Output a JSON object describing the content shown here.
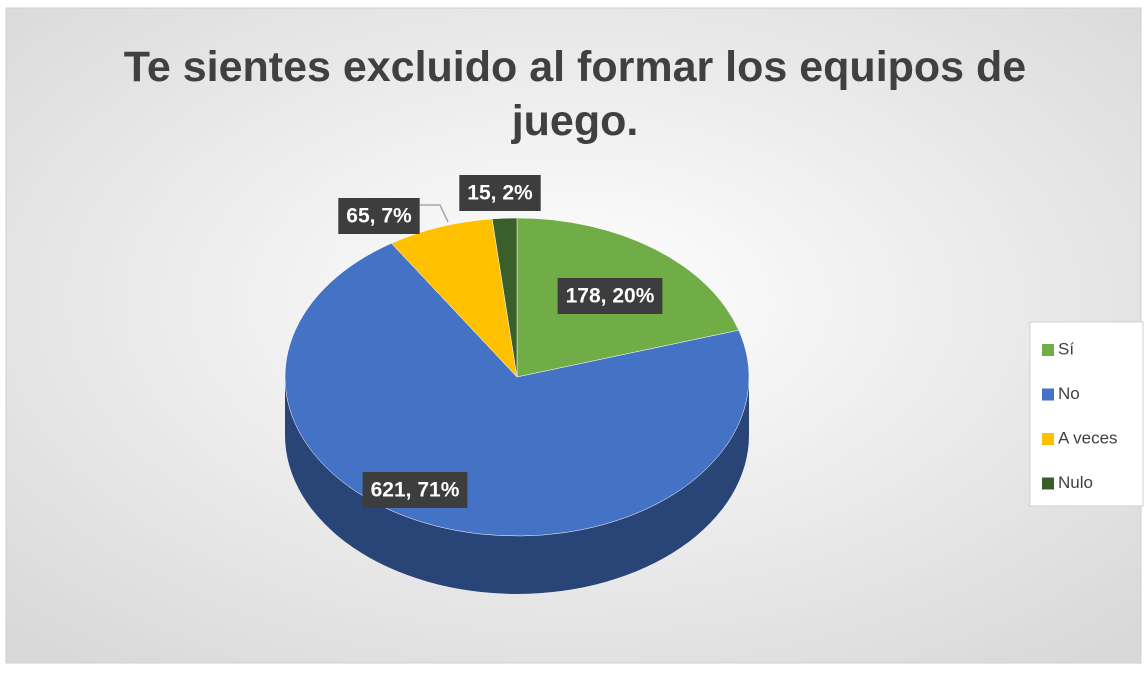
{
  "chart_data": {
    "type": "pie",
    "title": "Te sientes excluido al formar los equipos de juego.",
    "categories": [
      "Sí",
      "No",
      "A veces",
      "Nulo"
    ],
    "values": [
      178,
      621,
      65,
      15
    ],
    "value_labels": [
      "178, 20%",
      "621, 71%",
      "65, 7%",
      "15, 2%"
    ],
    "colors": [
      "#70ad47",
      "#4472c4",
      "#ffc000",
      "#3b5f2b"
    ],
    "legend": "right"
  }
}
